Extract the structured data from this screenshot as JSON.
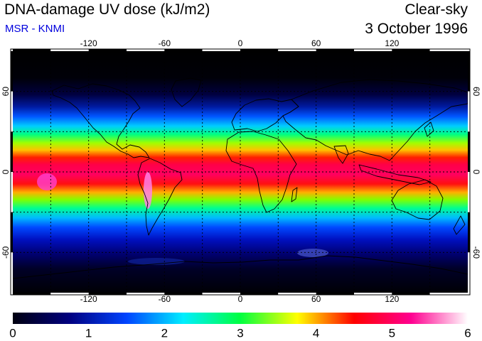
{
  "header": {
    "title": "DNA-damage UV dose (kJ/m2)",
    "source": "MSR - KNMI",
    "condition": "Clear-sky",
    "date": "3 October 1996"
  },
  "map": {
    "projection": "equirectangular",
    "lon_range": [
      -180,
      180
    ],
    "lat_range": [
      -90,
      90
    ],
    "grid_spacing_deg": 30,
    "lon_tick_labels": [
      "-120",
      "-60",
      "0",
      "60",
      "120"
    ],
    "lon_tick_values": [
      -120,
      -60,
      0,
      60,
      120
    ],
    "lat_tick_labels": [
      "60",
      "0",
      "-60"
    ],
    "lat_tick_values": [
      60,
      0,
      -60
    ],
    "grid": true,
    "coastlines": true
  },
  "colorbar": {
    "min": 0,
    "max": 6,
    "tick_labels": [
      "0",
      "1",
      "2",
      "3",
      "4",
      "5",
      "6"
    ],
    "colors": [
      "#000010",
      "#000080",
      "#0044ff",
      "#00eeff",
      "#00ff40",
      "#ffff00",
      "#ff0000",
      "#ff0090",
      "#ffffff"
    ]
  },
  "colors": {
    "background": "#ffffff",
    "subtitle": "#0000dd",
    "ocean_dark": "#000010"
  }
}
